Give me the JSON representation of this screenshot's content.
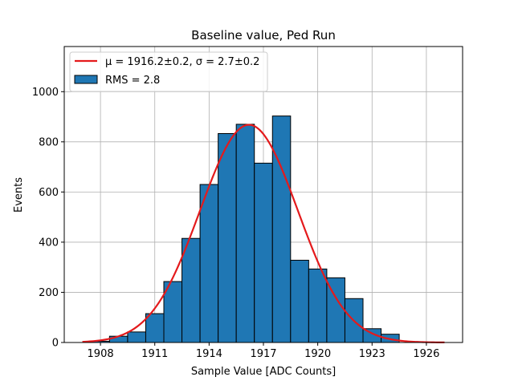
{
  "chart_data": {
    "type": "bar",
    "title": "Baseline value, Ped Run",
    "xlabel": "Sample Value [ADC Counts]",
    "ylabel": "Events",
    "xlim": [
      1906,
      1928
    ],
    "ylim": [
      0,
      1180
    ],
    "xticks": [
      1908,
      1911,
      1914,
      1917,
      1920,
      1923,
      1926
    ],
    "yticks": [
      0,
      200,
      400,
      600,
      800,
      1000
    ],
    "grid": true,
    "legend_placement": "top-left",
    "histogram": {
      "name": "RMS = 2.8",
      "color": "#1f77b4",
      "edgecolor": "#000000",
      "bins": [
        {
          "x0": 1907.5,
          "x1": 1908.5,
          "count": 5
        },
        {
          "x0": 1908.5,
          "x1": 1909.5,
          "count": 25
        },
        {
          "x0": 1909.5,
          "x1": 1910.5,
          "count": 42
        },
        {
          "x0": 1910.5,
          "x1": 1911.5,
          "count": 115
        },
        {
          "x0": 1911.5,
          "x1": 1912.5,
          "count": 243
        },
        {
          "x0": 1912.5,
          "x1": 1913.5,
          "count": 415
        },
        {
          "x0": 1913.5,
          "x1": 1914.5,
          "count": 630
        },
        {
          "x0": 1914.5,
          "x1": 1915.5,
          "count": 833
        },
        {
          "x0": 1915.5,
          "x1": 1916.5,
          "count": 870
        },
        {
          "x0": 1916.5,
          "x1": 1917.5,
          "count": 715
        },
        {
          "x0": 1917.5,
          "x1": 1918.5,
          "count": 903
        },
        {
          "x0": 1918.5,
          "x1": 1919.5,
          "count": 328
        },
        {
          "x0": 1919.5,
          "x1": 1920.5,
          "count": 293
        },
        {
          "x0": 1920.5,
          "x1": 1921.5,
          "count": 258
        },
        {
          "x0": 1921.5,
          "x1": 1922.5,
          "count": 175
        },
        {
          "x0": 1922.5,
          "x1": 1923.5,
          "count": 55
        },
        {
          "x0": 1923.5,
          "x1": 1924.5,
          "count": 33
        }
      ]
    },
    "fit": {
      "name": "μ = 1916.2±0.2, σ = 2.7±0.2",
      "type": "gaussian",
      "mu": 1916.2,
      "sigma": 2.7,
      "amplitude": 868,
      "x_range": [
        1907,
        1927
      ],
      "color": "#e41a1c"
    }
  }
}
